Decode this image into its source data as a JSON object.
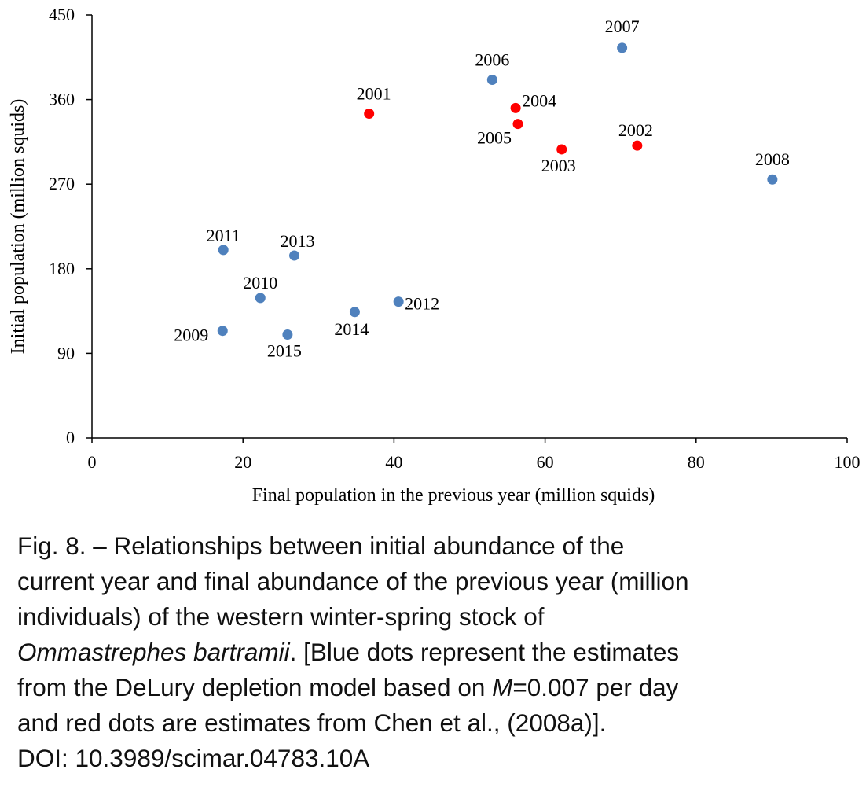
{
  "chart_data": {
    "type": "scatter",
    "xlabel": "Final population in the previous year (million squids)",
    "ylabel": "Initial population (million squids)",
    "xlim": [
      0,
      100
    ],
    "ylim": [
      0,
      450
    ],
    "x_ticks": [
      "0",
      "20",
      "40",
      "60",
      "80",
      "100"
    ],
    "y_ticks": [
      "0",
      "90",
      "180",
      "270",
      "360",
      "450"
    ],
    "grid": false,
    "colors": {
      "blue": "#4f81bd",
      "red": "#ff0000"
    },
    "series": [
      {
        "color": "blue",
        "points": [
          {
            "label": "2006",
            "x": 53.0,
            "y": 381
          },
          {
            "label": "2007",
            "x": 70.2,
            "y": 415
          },
          {
            "label": "2008",
            "x": 90.1,
            "y": 275
          },
          {
            "label": "2009",
            "x": 17.3,
            "y": 114
          },
          {
            "label": "2010",
            "x": 22.3,
            "y": 149
          },
          {
            "label": "2011",
            "x": 17.4,
            "y": 200
          },
          {
            "label": "2012",
            "x": 40.6,
            "y": 145
          },
          {
            "label": "2013",
            "x": 26.8,
            "y": 194
          },
          {
            "label": "2014",
            "x": 34.8,
            "y": 134
          },
          {
            "label": "2015",
            "x": 25.9,
            "y": 110
          }
        ]
      },
      {
        "color": "red",
        "points": [
          {
            "label": "2001",
            "x": 36.7,
            "y": 345
          },
          {
            "label": "2002",
            "x": 72.2,
            "y": 311
          },
          {
            "label": "2003",
            "x": 62.2,
            "y": 307
          },
          {
            "label": "2004",
            "x": 56.1,
            "y": 351
          },
          {
            "label": "2005",
            "x": 56.4,
            "y": 334
          }
        ]
      }
    ]
  },
  "caption": {
    "line1": "Fig. 8. – Relationships between initial abundance of the",
    "line2": "current year and final abundance of the previous year (million",
    "line3": "individuals) of the western winter-spring stock of",
    "line4_italic": "Ommastrephes bartramii",
    "line4_rest": ". [Blue dots represent the estimates",
    "line5_start": "from the DeLury depletion model based on ",
    "line5_var": "M",
    "line5_end": "=0.007 per day",
    "line6": "and red dots are estimates from Chen et al., (2008a)].",
    "line7": "DOI: 10.3989/scimar.04783.10A"
  }
}
